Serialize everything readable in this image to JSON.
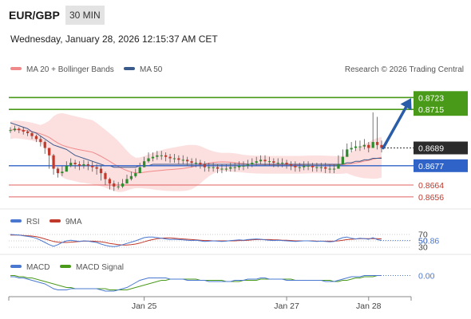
{
  "header": {
    "symbol": "EUR/GBP",
    "timeframe": "30 MIN",
    "datetime": "Wednesday, January 28, 2026 12:15:37 AM CET"
  },
  "legend": {
    "ma20": "MA 20 + Bollinger Bands",
    "ma50": "MA 50",
    "credit": "Research © 2026 Trading Central"
  },
  "rsi_legend": {
    "rsi": "RSI",
    "ma": "9MA"
  },
  "macd_legend": {
    "macd": "MACD",
    "signal": "MACD Signal"
  },
  "colors": {
    "ma20": "#f08a8a",
    "band": "#fbd4d4",
    "ma50": "#3b5a8c",
    "bull": "#2e8b2e",
    "bear": "#c0392b",
    "candle": "#555555",
    "resistance": "#4a9a1a",
    "pivot": "#2f63c7",
    "support": "#e06060",
    "arrow": "#2a5da8",
    "rsi": "#4a78d0",
    "rsi_ma": "#c0392b",
    "macd": "#4a78d0",
    "signal": "#4a9a1a"
  },
  "chart_data": [
    {
      "type": "candlestick",
      "title": "EUR/GBP 30 MIN",
      "x_ticks": [
        "Jan 25",
        "Jan 27",
        "Jan 28"
      ],
      "ylim": [
        0.865,
        0.8735
      ],
      "current_price": 0.8689,
      "levels": [
        {
          "value": 0.8723,
          "label": "0.8723",
          "kind": "resistance"
        },
        {
          "value": 0.8715,
          "label": "0.8715",
          "kind": "resistance"
        },
        {
          "value": 0.8689,
          "label": "0.8689",
          "kind": "last"
        },
        {
          "value": 0.8677,
          "label": "0.8677",
          "kind": "pivot"
        },
        {
          "value": 0.8664,
          "label": "0.8664",
          "kind": "support"
        },
        {
          "value": 0.8656,
          "label": "0.8656",
          "kind": "support"
        }
      ],
      "close": [
        0.8701,
        0.8702,
        0.8701,
        0.87,
        0.8699,
        0.8697,
        0.8695,
        0.8693,
        0.8689,
        0.8684,
        0.8675,
        0.8672,
        0.8673,
        0.8677,
        0.8679,
        0.8678,
        0.8677,
        0.8678,
        0.8677,
        0.8676,
        0.8675,
        0.8672,
        0.8668,
        0.8665,
        0.8663,
        0.8663,
        0.8665,
        0.8668,
        0.867,
        0.8672,
        0.8676,
        0.868,
        0.8682,
        0.8683,
        0.8684,
        0.8684,
        0.8683,
        0.8682,
        0.8682,
        0.8681,
        0.8681,
        0.868,
        0.8679,
        0.8679,
        0.8678,
        0.8676,
        0.8676,
        0.8676,
        0.8675,
        0.8675,
        0.8675,
        0.8676,
        0.8676,
        0.8677,
        0.8677,
        0.8678,
        0.8679,
        0.868,
        0.8681,
        0.868,
        0.868,
        0.8679,
        0.8679,
        0.8679,
        0.8678,
        0.8677,
        0.8676,
        0.8676,
        0.8677,
        0.8677,
        0.8676,
        0.8676,
        0.8676,
        0.8675,
        0.8675,
        0.8675,
        0.8678,
        0.8683,
        0.8688,
        0.8689,
        0.869,
        0.869,
        0.8691,
        0.8689,
        0.8693,
        0.8691,
        0.8689
      ],
      "high": [
        0.8703,
        0.8704,
        0.8703,
        0.8703,
        0.8701,
        0.87,
        0.8698,
        0.8697,
        0.8694,
        0.8689,
        0.8685,
        0.8676,
        0.8677,
        0.868,
        0.8682,
        0.8681,
        0.868,
        0.8681,
        0.868,
        0.868,
        0.8678,
        0.8677,
        0.8673,
        0.8669,
        0.8667,
        0.8666,
        0.8668,
        0.8671,
        0.8673,
        0.8675,
        0.8679,
        0.8683,
        0.8686,
        0.8686,
        0.8687,
        0.8687,
        0.8686,
        0.8685,
        0.8685,
        0.8684,
        0.8684,
        0.8683,
        0.8682,
        0.8682,
        0.8681,
        0.868,
        0.8679,
        0.8679,
        0.8678,
        0.8678,
        0.8678,
        0.8679,
        0.8679,
        0.868,
        0.868,
        0.8681,
        0.8682,
        0.8683,
        0.8684,
        0.8684,
        0.8683,
        0.8682,
        0.8682,
        0.8682,
        0.8681,
        0.868,
        0.868,
        0.8679,
        0.868,
        0.868,
        0.8679,
        0.8679,
        0.8679,
        0.8679,
        0.8678,
        0.8678,
        0.8684,
        0.8688,
        0.8692,
        0.8693,
        0.8694,
        0.8694,
        0.8695,
        0.8693,
        0.8713,
        0.871,
        0.8694
      ],
      "low": [
        0.8699,
        0.87,
        0.8699,
        0.8698,
        0.8697,
        0.8695,
        0.8693,
        0.869,
        0.8685,
        0.8675,
        0.8671,
        0.8669,
        0.867,
        0.8674,
        0.8676,
        0.8675,
        0.8674,
        0.8675,
        0.8674,
        0.8673,
        0.8671,
        0.8667,
        0.8664,
        0.8661,
        0.866,
        0.8661,
        0.8662,
        0.8665,
        0.8667,
        0.8669,
        0.8673,
        0.8677,
        0.8679,
        0.868,
        0.8681,
        0.8681,
        0.868,
        0.8679,
        0.8679,
        0.8678,
        0.8678,
        0.8677,
        0.8676,
        0.8676,
        0.8675,
        0.8673,
        0.8673,
        0.8673,
        0.8672,
        0.8672,
        0.8673,
        0.8673,
        0.8673,
        0.8674,
        0.8674,
        0.8675,
        0.8676,
        0.8677,
        0.8678,
        0.8677,
        0.8677,
        0.8676,
        0.8676,
        0.8676,
        0.8675,
        0.8674,
        0.8673,
        0.8673,
        0.8674,
        0.8674,
        0.8673,
        0.8673,
        0.8673,
        0.8672,
        0.8672,
        0.8672,
        0.8675,
        0.868,
        0.8685,
        0.8686,
        0.8687,
        0.8687,
        0.8688,
        0.8686,
        0.8689,
        0.8688,
        0.8686
      ],
      "ma50": [
        0.8706,
        0.8705,
        0.8704,
        0.8703,
        0.8702,
        0.87,
        0.8699,
        0.8697,
        0.8695,
        0.8693,
        0.8691,
        0.869,
        0.8689,
        0.8688,
        0.8686,
        0.8684,
        0.8683,
        0.8682,
        0.8681,
        0.868,
        0.8679,
        0.8678,
        0.8677,
        0.8677,
        0.8676,
        0.8676,
        0.8676,
        0.8676,
        0.8676,
        0.8676,
        0.8677,
        0.8677,
        0.8677,
        0.8678,
        0.8678,
        0.8678,
        0.8678,
        0.8678,
        0.8678,
        0.8678,
        0.8678,
        0.8678,
        0.8678,
        0.8678,
        0.8678,
        0.8678,
        0.8678,
        0.8678,
        0.8678,
        0.8678,
        0.8678,
        0.8678,
        0.8678,
        0.8678,
        0.8678,
        0.8678,
        0.8678,
        0.8678,
        0.8678,
        0.8678,
        0.8678,
        0.8678,
        0.8678,
        0.8678,
        0.8678,
        0.8678,
        0.8678,
        0.8678,
        0.8678,
        0.8678,
        0.8678,
        0.8678,
        0.8678,
        0.8678,
        0.8678,
        0.8678,
        0.8678,
        0.8678,
        0.8679,
        0.8679,
        0.868,
        0.868,
        0.8681,
        0.8681,
        0.8682,
        0.8682,
        0.8682
      ]
    },
    {
      "type": "line",
      "title": "RSI",
      "ticks": [
        70,
        50,
        30
      ],
      "last_value": 50.86,
      "last_label": "50.86",
      "ylim": [
        20,
        80
      ],
      "series": [
        {
          "name": "RSI",
          "values": [
            70,
            69,
            68,
            66,
            64,
            62,
            58,
            52,
            45,
            38,
            33,
            38,
            45,
            50,
            52,
            50,
            48,
            50,
            49,
            47,
            45,
            40,
            36,
            33,
            32,
            34,
            38,
            42,
            46,
            50,
            55,
            60,
            62,
            62,
            60,
            58,
            56,
            54,
            55,
            54,
            53,
            52,
            51,
            52,
            50,
            48,
            49,
            50,
            49,
            48,
            49,
            51,
            52,
            53,
            52,
            54,
            55,
            56,
            55,
            53,
            52,
            51,
            52,
            51,
            50,
            49,
            48,
            49,
            50,
            50,
            49,
            48,
            49,
            48,
            47,
            48,
            55,
            60,
            62,
            58,
            56,
            58,
            57,
            55,
            60,
            54,
            51
          ]
        },
        {
          "name": "9MA",
          "values": [
            68,
            68,
            68,
            67,
            66,
            65,
            63,
            60,
            56,
            52,
            48,
            46,
            45,
            45,
            46,
            47,
            48,
            49,
            49,
            49,
            48,
            47,
            45,
            42,
            40,
            38,
            37,
            37,
            38,
            40,
            43,
            47,
            51,
            54,
            57,
            58,
            59,
            59,
            58,
            57,
            56,
            55,
            54,
            53,
            52,
            51,
            51,
            50,
            50,
            50,
            50,
            50,
            50,
            51,
            51,
            52,
            53,
            54,
            54,
            54,
            54,
            53,
            53,
            52,
            52,
            51,
            50,
            50,
            50,
            50,
            50,
            49,
            49,
            49,
            49,
            49,
            50,
            52,
            54,
            55,
            56,
            57,
            57,
            57,
            57,
            57,
            56
          ]
        }
      ]
    },
    {
      "type": "line",
      "title": "MACD",
      "last_value": 0.0,
      "last_label": "0.00",
      "ylim": [
        -0.0012,
        0.0006
      ],
      "series": [
        {
          "name": "MACD",
          "values": [
            0.0002,
            0.0002,
            0.0001,
            0.0001,
            0.0,
            -0.0001,
            -0.0002,
            -0.0003,
            -0.0004,
            -0.0006,
            -0.0008,
            -0.0009,
            -0.0009,
            -0.0009,
            -0.0008,
            -0.0008,
            -0.0008,
            -0.0008,
            -0.0008,
            -0.0008,
            -0.0008,
            -0.0009,
            -0.001,
            -0.001,
            -0.001,
            -0.0009,
            -0.0008,
            -0.0007,
            -0.0005,
            -0.0003,
            -0.0001,
            0.0,
            0.0001,
            0.0001,
            0.0001,
            0.0001,
            0.0001,
            0.0,
            0.0,
            0.0,
            0.0,
            -0.0001,
            -0.0001,
            -0.0001,
            -0.0001,
            -0.0001,
            -0.0002,
            -0.0002,
            -0.0002,
            -0.0002,
            -0.0002,
            -0.0002,
            -0.0001,
            -0.0001,
            -0.0001,
            0.0,
            0.0,
            0.0,
            0.0001,
            0.0001,
            0.0,
            0.0,
            0.0,
            0.0,
            -0.0001,
            -0.0001,
            -0.0001,
            -0.0001,
            -0.0001,
            -0.0001,
            -0.0001,
            -0.0001,
            -0.0001,
            -0.0002,
            -0.0002,
            -0.0002,
            -0.0001,
            0.0,
            0.0001,
            0.0002,
            0.0002,
            0.0002,
            0.0003,
            0.0003,
            0.0003,
            0.0003,
            0.0003
          ]
        },
        {
          "name": "MACD Signal",
          "values": [
            0.0003,
            0.0003,
            0.0002,
            0.0002,
            0.0001,
            0.0001,
            0.0,
            -0.0001,
            -0.0002,
            -0.0003,
            -0.0004,
            -0.0005,
            -0.0006,
            -0.0007,
            -0.0007,
            -0.0008,
            -0.0008,
            -0.0008,
            -0.0008,
            -0.0008,
            -0.0008,
            -0.0008,
            -0.0008,
            -0.0009,
            -0.0009,
            -0.0009,
            -0.0009,
            -0.0009,
            -0.0008,
            -0.0007,
            -0.0006,
            -0.0005,
            -0.0004,
            -0.0003,
            -0.0002,
            -0.0001,
            -0.0001,
            0.0,
            0.0,
            0.0,
            0.0,
            0.0,
            0.0,
            0.0,
            -0.0001,
            -0.0001,
            -0.0001,
            -0.0001,
            -0.0001,
            -0.0001,
            -0.0002,
            -0.0002,
            -0.0002,
            -0.0002,
            -0.0001,
            -0.0001,
            -0.0001,
            -0.0001,
            0.0,
            0.0,
            0.0,
            0.0,
            0.0,
            0.0,
            0.0,
            0.0,
            -0.0001,
            -0.0001,
            -0.0001,
            -0.0001,
            -0.0001,
            -0.0001,
            -0.0001,
            -0.0001,
            -0.0001,
            -0.0002,
            -0.0002,
            -0.0001,
            -0.0001,
            0.0,
            0.0001,
            0.0001,
            0.0002,
            0.0002,
            0.0002,
            0.0003,
            0.0003
          ]
        }
      ]
    }
  ]
}
